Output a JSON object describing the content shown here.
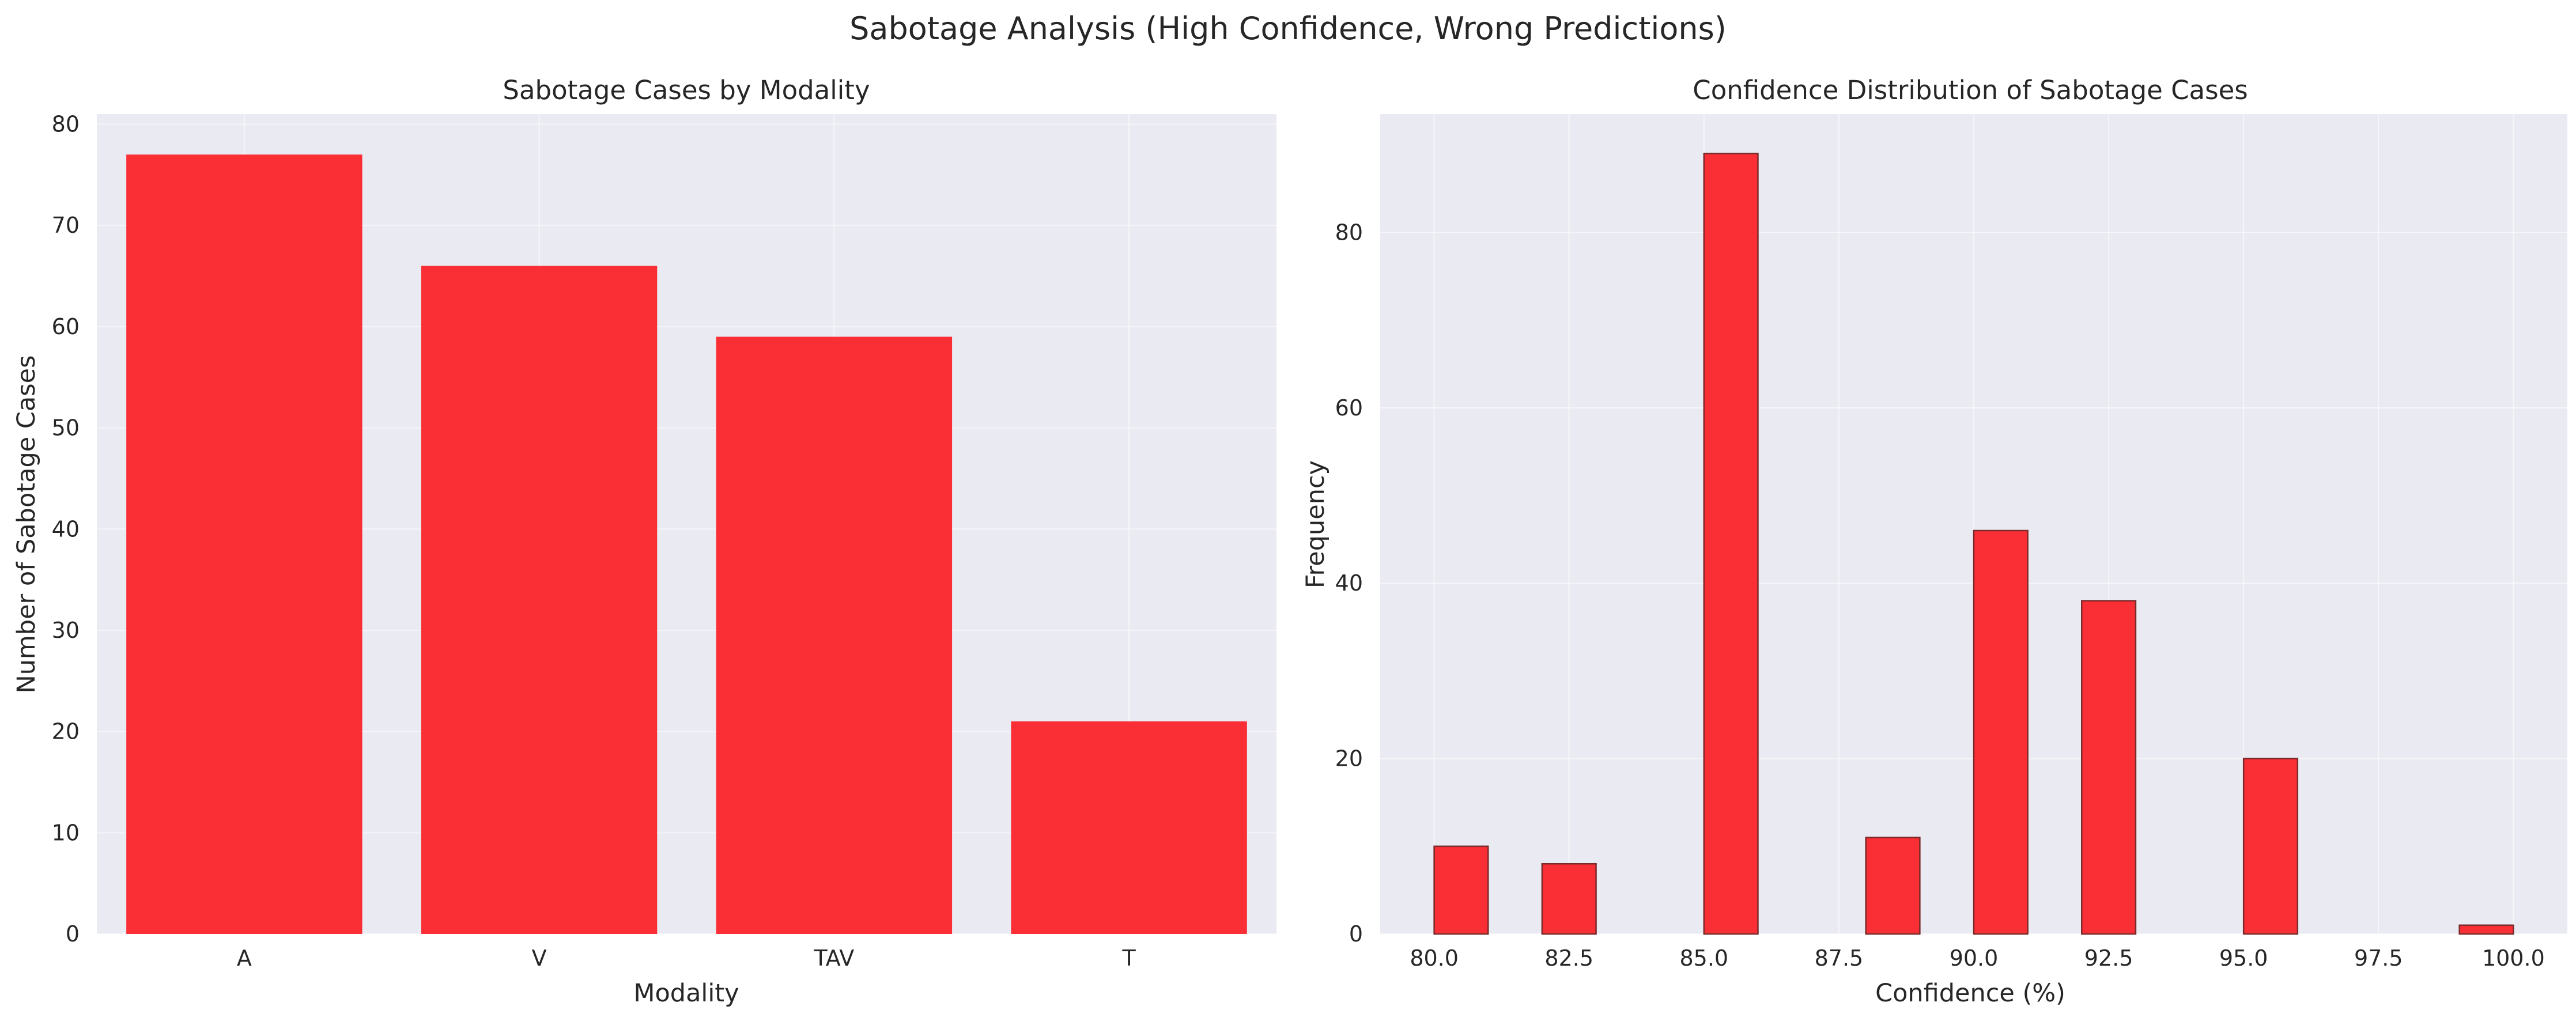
{
  "figure": {
    "title": "Sabotage Analysis (High Confidence, Wrong Predictions)"
  },
  "colors": {
    "bar": "#F92F35",
    "bar_edge_right": "#7a2a2a",
    "plot_background": "#EAEAF2",
    "grid": "#ffffff",
    "text": "#262626"
  },
  "chart_data": [
    {
      "type": "bar",
      "title": "Sabotage Cases by Modality",
      "xlabel": "Modality",
      "ylabel": "Number of Sabotage Cases",
      "categories": [
        "A",
        "V",
        "TAV",
        "T"
      ],
      "values": [
        77,
        66,
        59,
        21
      ],
      "ylim": [
        0,
        81
      ],
      "yticks": [
        0,
        10,
        20,
        30,
        40,
        50,
        60,
        70,
        80
      ],
      "grid": true,
      "legend": "none"
    },
    {
      "type": "bar",
      "title": "Confidence Distribution of Sabotage Cases",
      "xlabel": "Confidence (%)",
      "ylabel": "Frequency",
      "bins": [
        {
          "x": 80.0,
          "x2": 81.0,
          "count": 10
        },
        {
          "x": 82.0,
          "x2": 83.0,
          "count": 8
        },
        {
          "x": 85.0,
          "x2": 86.0,
          "count": 89
        },
        {
          "x": 88.0,
          "x2": 89.0,
          "count": 11
        },
        {
          "x": 90.0,
          "x2": 91.0,
          "count": 46
        },
        {
          "x": 92.0,
          "x2": 93.0,
          "count": 38
        },
        {
          "x": 95.0,
          "x2": 96.0,
          "count": 20
        },
        {
          "x": 99.0,
          "x2": 100.0,
          "count": 1
        }
      ],
      "xlim": [
        79.0,
        101.0
      ],
      "ylim": [
        0,
        93.5
      ],
      "xticks": [
        "80.0",
        "82.5",
        "85.0",
        "87.5",
        "90.0",
        "92.5",
        "95.0",
        "97.5",
        "100.0"
      ],
      "yticks": [
        0,
        20,
        40,
        60,
        80
      ],
      "grid": true,
      "legend": "none"
    }
  ]
}
